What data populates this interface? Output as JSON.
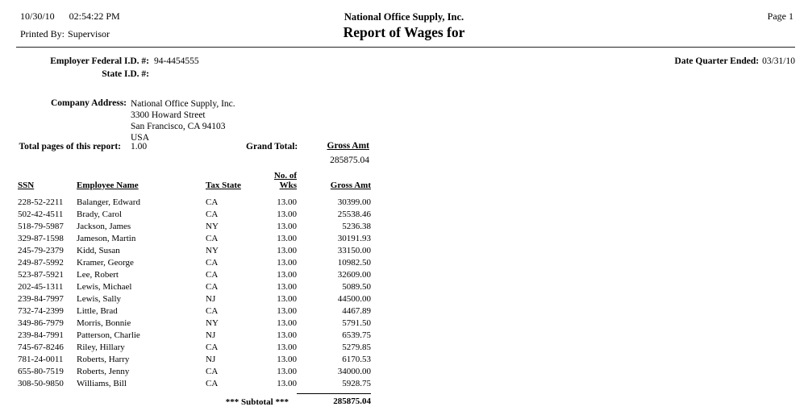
{
  "header": {
    "date": "10/30/10",
    "time": "02:54:22 PM",
    "printed_by_label": "Printed By:",
    "printed_by_value": "Supervisor",
    "company_name": "National Office Supply, Inc.",
    "report_title": "Report of Wages for",
    "page_label": "Page 1"
  },
  "employer": {
    "federal_id_label": "Employer Federal I.D. #:",
    "federal_id_value": "94-4454555",
    "state_id_label": "State I.D. #:",
    "state_id_value": "",
    "quarter_ended_label": "Date Quarter Ended:",
    "quarter_ended_value": "03/31/10"
  },
  "company": {
    "address_label": "Company Address:",
    "address_lines": [
      "National Office Supply, Inc.",
      "3300 Howard Street",
      "San Francisco, CA 94103",
      "USA"
    ]
  },
  "summary": {
    "total_pages_label": "Total pages of this report:",
    "total_pages_value": "1.00",
    "grand_total_label": "Grand Total:",
    "gross_amt_label": "Gross Amt",
    "gross_amt_value": "285875.04"
  },
  "table": {
    "columns": [
      "SSN",
      "Employee Name",
      "Tax State",
      "No. of Wks",
      "Gross Amt"
    ],
    "rows": [
      {
        "ssn": "228-52-2211",
        "name": "Balanger, Edward",
        "tax_state": "CA",
        "weeks": "13.00",
        "gross": "30399.00"
      },
      {
        "ssn": "502-42-4511",
        "name": "Brady, Carol",
        "tax_state": "CA",
        "weeks": "13.00",
        "gross": "25538.46"
      },
      {
        "ssn": "518-79-5987",
        "name": "Jackson, James",
        "tax_state": "NY",
        "weeks": "13.00",
        "gross": "5236.38"
      },
      {
        "ssn": "329-87-1598",
        "name": "Jameson, Martin",
        "tax_state": "CA",
        "weeks": "13.00",
        "gross": "30191.93"
      },
      {
        "ssn": "245-79-2379",
        "name": "Kidd, Susan",
        "tax_state": "NY",
        "weeks": "13.00",
        "gross": "33150.00"
      },
      {
        "ssn": "249-87-5992",
        "name": "Kramer, George",
        "tax_state": "CA",
        "weeks": "13.00",
        "gross": "10982.50"
      },
      {
        "ssn": "523-87-5921",
        "name": "Lee, Robert",
        "tax_state": "CA",
        "weeks": "13.00",
        "gross": "32609.00"
      },
      {
        "ssn": "202-45-1311",
        "name": "Lewis, Michael",
        "tax_state": "CA",
        "weeks": "13.00",
        "gross": "5089.50"
      },
      {
        "ssn": "239-84-7997",
        "name": "Lewis, Sally",
        "tax_state": "NJ",
        "weeks": "13.00",
        "gross": "44500.00"
      },
      {
        "ssn": "732-74-2399",
        "name": "Little, Brad",
        "tax_state": "CA",
        "weeks": "13.00",
        "gross": "4467.89"
      },
      {
        "ssn": "349-86-7979",
        "name": "Morris, Bonnie",
        "tax_state": "NY",
        "weeks": "13.00",
        "gross": "5791.50"
      },
      {
        "ssn": "239-84-7991",
        "name": "Patterson, Charlie",
        "tax_state": "NJ",
        "weeks": "13.00",
        "gross": "6539.75"
      },
      {
        "ssn": "745-67-8246",
        "name": "Riley, Hillary",
        "tax_state": "CA",
        "weeks": "13.00",
        "gross": "5279.85"
      },
      {
        "ssn": "781-24-0011",
        "name": "Roberts, Harry",
        "tax_state": "NJ",
        "weeks": "13.00",
        "gross": "6170.53"
      },
      {
        "ssn": "655-80-7519",
        "name": "Roberts, Jenny",
        "tax_state": "CA",
        "weeks": "13.00",
        "gross": "34000.00"
      },
      {
        "ssn": "308-50-9850",
        "name": "Williams, Bill",
        "tax_state": "CA",
        "weeks": "13.00",
        "gross": "5928.75"
      }
    ],
    "subtotal_label": "*** Subtotal ***",
    "subtotal_value": "285875.04"
  }
}
